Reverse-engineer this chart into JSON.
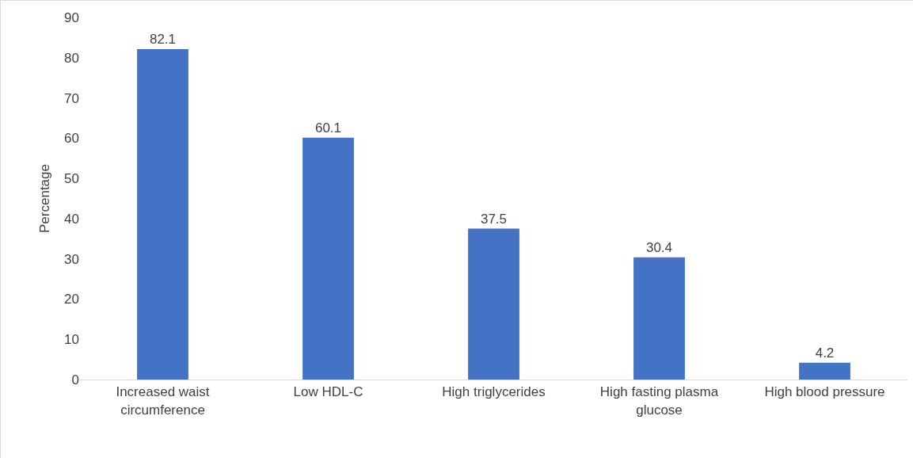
{
  "chart_data": {
    "type": "bar",
    "ylabel": "Percentage",
    "categories": [
      "Increased waist circumference",
      "Low HDL-C",
      "High triglycerides",
      "High fasting plasma glucose",
      "High blood pressure"
    ],
    "values": [
      82.1,
      60.1,
      37.5,
      30.4,
      4.2
    ],
    "color": "#4472c4",
    "ylim": [
      0,
      90
    ],
    "yticks": [
      0,
      10,
      20,
      30,
      40,
      50,
      60,
      70,
      80,
      90
    ],
    "grid": false,
    "data_labels": true
  }
}
